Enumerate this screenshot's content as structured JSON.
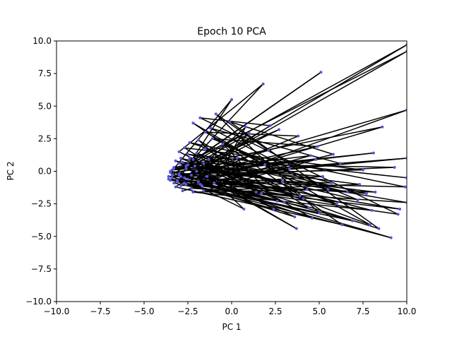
{
  "chart_data": {
    "type": "line",
    "title": "Epoch 10 PCA",
    "xlabel": "PC 1",
    "ylabel": "PC 2",
    "xlim": [
      -10,
      10
    ],
    "ylim": [
      -10,
      10
    ],
    "xticks": [
      -10,
      -7.5,
      -5,
      -2.5,
      0,
      2.5,
      5,
      7.5,
      10
    ],
    "yticks": [
      -10,
      -7.5,
      -5,
      -2.5,
      0,
      2.5,
      5,
      7.5,
      10
    ],
    "xtick_labels": [
      "−10.0",
      "−7.5",
      "−5.0",
      "−2.5",
      "0.0",
      "2.5",
      "5.0",
      "7.5",
      "10.0"
    ],
    "ytick_labels": [
      "−10.0",
      "−7.5",
      "−5.0",
      "−2.5",
      "0.0",
      "2.5",
      "5.0",
      "7.5",
      "10.0"
    ],
    "grid": false,
    "line_color": "#000000",
    "marker_color": "#5555dd",
    "points": [
      [
        -3.4,
        -0.3
      ],
      [
        5.1,
        7.6
      ],
      [
        -2.5,
        0.5
      ],
      [
        1.8,
        6.7
      ],
      [
        -3.0,
        1.5
      ],
      [
        1.7,
        -1.7
      ],
      [
        -1.6,
        0.6
      ],
      [
        9.3,
        0.3
      ],
      [
        -2.9,
        -0.4
      ],
      [
        0.0,
        5.5
      ],
      [
        -3.3,
        0.2
      ],
      [
        8.6,
        3.4
      ],
      [
        -1.9,
        -0.8
      ],
      [
        9.1,
        -5.1
      ],
      [
        -3.6,
        -0.6
      ],
      [
        4.3,
        -1.4
      ],
      [
        -2.2,
        3.7
      ],
      [
        6.3,
        -4.1
      ],
      [
        -3.2,
        -1.2
      ],
      [
        2.2,
        3.5
      ],
      [
        -1.8,
        4.1
      ],
      [
        9.5,
        -3.3
      ],
      [
        -2.7,
        -0.9
      ],
      [
        3.8,
        2.7
      ],
      [
        -1.5,
        3.0
      ],
      [
        7.9,
        -4.1
      ],
      [
        -2.4,
        1.0
      ],
      [
        0.7,
        -2.9
      ],
      [
        -3.5,
        -0.1
      ],
      [
        4.5,
        1.2
      ],
      [
        -2.8,
        -1.5
      ],
      [
        5.8,
        1.3
      ],
      [
        -0.1,
        3.8
      ],
      [
        8.4,
        -4.4
      ],
      [
        -2.6,
        0.2
      ],
      [
        3.6,
        -3.5
      ],
      [
        -3.1,
        -0.7
      ],
      [
        2.7,
        3.2
      ],
      [
        -1.3,
        0.9
      ],
      [
        6.6,
        -1.6
      ],
      [
        -3.0,
        0.6
      ],
      [
        10.0,
        -2.4
      ],
      [
        -2.3,
        -1.3
      ],
      [
        1.0,
        2.9
      ],
      [
        -3.4,
        -0.5
      ],
      [
        4.9,
        1.9
      ],
      [
        -1.1,
        2.5
      ],
      [
        7.2,
        -2.2
      ],
      [
        -2.9,
        1.0
      ],
      [
        3.0,
        -2.4
      ],
      [
        -1.7,
        -1.1
      ],
      [
        8.2,
        -1.6
      ],
      [
        -3.3,
        0.3
      ],
      [
        2.1,
        1.6
      ],
      [
        -0.9,
        4.4
      ],
      [
        5.0,
        -3.2
      ],
      [
        -2.6,
        -1.0
      ],
      [
        9.6,
        -2.9
      ],
      [
        -3.5,
        0.0
      ],
      [
        4.6,
        -3.6
      ],
      [
        -2.0,
        1.4
      ],
      [
        6.0,
        -2.5
      ],
      [
        -1.4,
        -0.4
      ],
      [
        3.7,
        -4.4
      ],
      [
        -3.2,
        0.8
      ],
      [
        8.0,
        -3.0
      ],
      [
        -2.2,
        -1.6
      ],
      [
        5.5,
        -1.4
      ],
      [
        -0.5,
        2.1
      ],
      [
        2.6,
        -2.3
      ],
      [
        -3.0,
        -0.2
      ],
      [
        7.5,
        0.1
      ],
      [
        -2.7,
        1.8
      ],
      [
        1.4,
        -1.6
      ],
      [
        -1.9,
        2.4
      ],
      [
        4.4,
        -2.8
      ],
      [
        -3.6,
        -0.4
      ],
      [
        10.0,
        1.0
      ],
      [
        -2.5,
        -0.6
      ],
      [
        6.2,
        0.6
      ],
      [
        -1.2,
        3.3
      ],
      [
        3.3,
        0.2
      ],
      [
        -2.9,
        -1.1
      ],
      [
        5.2,
        -0.4
      ],
      [
        -2.1,
        0.4
      ],
      [
        2.4,
        -2.9
      ],
      [
        -3.1,
        -0.8
      ],
      [
        9.9,
        -1.2
      ],
      [
        -2.4,
        2.2
      ],
      [
        0.3,
        1.0
      ],
      [
        -3.4,
        0.1
      ],
      [
        4.8,
        0.9
      ],
      [
        -1.6,
        -1.5
      ],
      [
        7.3,
        -1.0
      ],
      [
        -2.8,
        0.7
      ],
      [
        3.9,
        -1.9
      ],
      [
        -2.3,
        -0.3
      ],
      [
        0.8,
        3.4
      ],
      [
        -1.0,
        -0.9
      ],
      [
        6.9,
        -3.8
      ],
      [
        -3.3,
        -0.9
      ],
      [
        10.0,
        9.7
      ],
      [
        -2.6,
        0.4
      ],
      [
        2.9,
        -0.8
      ],
      [
        -1.8,
        -1.0
      ],
      [
        10.0,
        4.7
      ],
      [
        -2.0,
        0.0
      ],
      [
        8.1,
        1.4
      ],
      [
        -3.0,
        -0.3
      ],
      [
        4.1,
        -2.1
      ],
      [
        -1.5,
        1.7
      ],
      [
        5.7,
        -0.9
      ],
      [
        -2.7,
        -0.5
      ],
      [
        10.0,
        9.2
      ],
      [
        -2.2,
        0.9
      ],
      [
        1.9,
        0.5
      ],
      [
        -3.5,
        -0.7
      ],
      [
        7.7,
        -1.7
      ],
      [
        -2.5,
        1.3
      ],
      [
        10.0,
        -0.5
      ]
    ]
  }
}
